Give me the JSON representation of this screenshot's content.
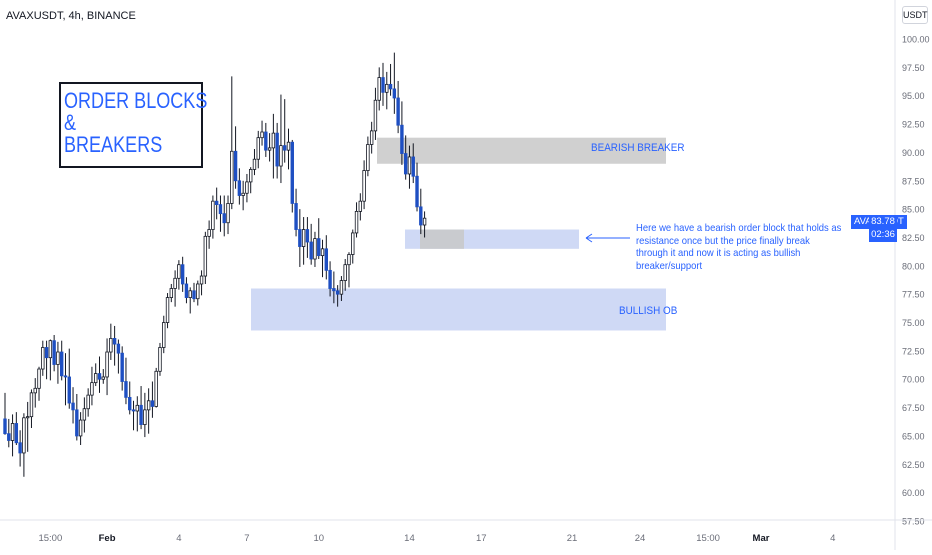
{
  "header": {
    "symbol_title": "AVAXUSDT, 4h, BINANCE",
    "currency": "USDT"
  },
  "annotations": {
    "title_lines": [
      "ORDER BLOCKS",
      "&",
      "BREAKERS"
    ],
    "bearish_breaker_label": "BEARISH BREAKER",
    "bullish_ob_label": "BULLISH OB",
    "note_text": "Here we have a bearish order block that holds as resistance once but the price finally break through it and now it is acting as bullish breaker/support"
  },
  "last_price": {
    "symbol": "AVAXUSDT",
    "value": "83.78",
    "countdown": "02:36"
  },
  "colors": {
    "bull_body": "#ffffff",
    "bear_body": "#1e4fc2",
    "wick": "#131722",
    "accent": "#2962ff",
    "breaker_zone": "#c8c8c8",
    "ob_zone": "#cfd9f5",
    "axis_text": "#6a6d78"
  },
  "chart_data": {
    "type": "candlestick",
    "symbol": "AVAXUSDT",
    "timeframe": "4h",
    "exchange": "BINANCE",
    "ylim": [
      57.5,
      101.5
    ],
    "y_ticks": [
      57.5,
      60.0,
      62.5,
      65.0,
      67.5,
      70.0,
      72.5,
      75.0,
      77.5,
      80.0,
      82.5,
      85.0,
      87.5,
      90.0,
      92.5,
      95.0,
      97.5,
      100.0
    ],
    "x_ticks": [
      {
        "label": "15:00",
        "index": 12
      },
      {
        "label": "Feb",
        "index": 27
      },
      {
        "label": "4",
        "index": 46
      },
      {
        "label": "7",
        "index": 64
      },
      {
        "label": "10",
        "index": 83
      },
      {
        "label": "14",
        "index": 107
      },
      {
        "label": "17",
        "index": 126
      },
      {
        "label": "21",
        "index": 150
      },
      {
        "label": "24",
        "index": 168
      },
      {
        "label": "15:00",
        "index": 186
      },
      {
        "label": "Mar",
        "index": 200
      },
      {
        "label": "4",
        "index": 219
      }
    ],
    "candles": [
      [
        66.5,
        68.8,
        65.1,
        65.2
      ],
      [
        65.2,
        66.5,
        64.0,
        64.6
      ],
      [
        64.6,
        66.9,
        63.2,
        66.1
      ],
      [
        66.1,
        67.1,
        64.2,
        64.4
      ],
      [
        64.4,
        65.5,
        62.3,
        63.5
      ],
      [
        63.5,
        67.0,
        61.4,
        66.6
      ],
      [
        66.6,
        68.0,
        63.6,
        66.7
      ],
      [
        66.7,
        69.1,
        65.7,
        68.8
      ],
      [
        68.8,
        70.1,
        67.5,
        69.2
      ],
      [
        69.2,
        71.1,
        68.1,
        70.9
      ],
      [
        70.9,
        73.4,
        70.3,
        72.8
      ],
      [
        72.8,
        73.4,
        70.0,
        71.9
      ],
      [
        71.9,
        73.5,
        69.9,
        73.4
      ],
      [
        73.4,
        73.9,
        70.7,
        71.3
      ],
      [
        71.3,
        73.3,
        69.6,
        72.4
      ],
      [
        72.4,
        73.4,
        69.9,
        70.3
      ],
      [
        70.3,
        72.3,
        67.7,
        70.2
      ],
      [
        70.2,
        72.7,
        67.4,
        67.9
      ],
      [
        67.9,
        69.3,
        66.1,
        67.3
      ],
      [
        67.3,
        68.7,
        64.6,
        65.0
      ],
      [
        65.0,
        67.1,
        64.2,
        66.4
      ],
      [
        66.4,
        68.4,
        65.3,
        67.4
      ],
      [
        67.4,
        69.2,
        66.7,
        68.6
      ],
      [
        68.6,
        71.1,
        67.7,
        69.7
      ],
      [
        69.7,
        71.4,
        69.4,
        70.5
      ],
      [
        70.5,
        72.0,
        68.8,
        70.0
      ],
      [
        70.0,
        70.9,
        69.6,
        70.2
      ],
      [
        70.2,
        73.6,
        68.6,
        72.4
      ],
      [
        72.4,
        74.9,
        71.7,
        73.6
      ],
      [
        73.6,
        74.7,
        71.2,
        73.1
      ],
      [
        73.1,
        73.5,
        70.5,
        72.3
      ],
      [
        72.3,
        72.9,
        69.0,
        69.8
      ],
      [
        69.8,
        71.9,
        67.8,
        68.4
      ],
      [
        68.4,
        69.8,
        66.9,
        67.3
      ],
      [
        67.3,
        68.1,
        65.5,
        67.2
      ],
      [
        67.2,
        68.5,
        65.4,
        67.7
      ],
      [
        67.7,
        69.4,
        65.6,
        66.0
      ],
      [
        66.0,
        68.8,
        64.9,
        67.3
      ],
      [
        67.3,
        69.2,
        65.2,
        68.1
      ],
      [
        68.1,
        69.8,
        66.6,
        67.6
      ],
      [
        67.6,
        71.0,
        67.5,
        70.7
      ],
      [
        70.7,
        73.2,
        70.3,
        72.8
      ],
      [
        72.8,
        75.6,
        72.3,
        75.0
      ],
      [
        75.0,
        77.6,
        74.5,
        77.2
      ],
      [
        77.2,
        78.4,
        76.8,
        78.0
      ],
      [
        78.0,
        79.6,
        76.4,
        78.9
      ],
      [
        78.9,
        80.5,
        77.9,
        80.1
      ],
      [
        80.1,
        80.8,
        77.7,
        78.4
      ],
      [
        78.4,
        79.0,
        76.7,
        77.2
      ],
      [
        77.2,
        78.1,
        75.8,
        77.8
      ],
      [
        77.8,
        78.5,
        76.8,
        77.1
      ],
      [
        77.1,
        78.7,
        76.5,
        78.4
      ],
      [
        78.4,
        79.6,
        77.4,
        79.1
      ],
      [
        79.1,
        83.0,
        78.4,
        82.6
      ],
      [
        82.6,
        84.0,
        81.5,
        83.2
      ],
      [
        83.2,
        86.2,
        82.4,
        85.7
      ],
      [
        85.7,
        86.9,
        84.1,
        85.4
      ],
      [
        85.4,
        86.2,
        83.0,
        84.6
      ],
      [
        84.6,
        86.2,
        82.6,
        83.8
      ],
      [
        83.8,
        86.2,
        82.8,
        85.5
      ],
      [
        85.5,
        96.7,
        85.0,
        90.1
      ],
      [
        90.1,
        92.3,
        86.8,
        87.5
      ],
      [
        87.5,
        88.6,
        85.4,
        86.2
      ],
      [
        86.2,
        87.5,
        84.9,
        86.4
      ],
      [
        86.4,
        88.1,
        85.6,
        87.4
      ],
      [
        87.4,
        88.7,
        86.4,
        88.5
      ],
      [
        88.5,
        90.3,
        88.0,
        89.4
      ],
      [
        89.4,
        91.9,
        88.6,
        91.3
      ],
      [
        91.3,
        92.8,
        90.6,
        91.8
      ],
      [
        91.8,
        92.6,
        89.6,
        90.2
      ],
      [
        90.2,
        91.7,
        89.2,
        90.4
      ],
      [
        90.4,
        93.4,
        87.7,
        91.7
      ],
      [
        91.7,
        92.6,
        87.7,
        88.8
      ],
      [
        88.8,
        95.1,
        87.3,
        90.6
      ],
      [
        90.6,
        94.7,
        89.1,
        90.2
      ],
      [
        90.2,
        92.1,
        88.5,
        90.9
      ],
      [
        90.9,
        91.1,
        84.7,
        85.5
      ],
      [
        85.5,
        86.8,
        82.6,
        83.2
      ],
      [
        83.2,
        85.0,
        79.9,
        81.7
      ],
      [
        81.7,
        84.3,
        80.1,
        83.2
      ],
      [
        83.2,
        84.3,
        80.7,
        82.1
      ],
      [
        82.1,
        83.7,
        80.1,
        80.6
      ],
      [
        80.6,
        83.0,
        79.9,
        82.4
      ],
      [
        82.4,
        84.2,
        80.6,
        80.9
      ],
      [
        80.9,
        82.3,
        79.0,
        81.5
      ],
      [
        81.5,
        82.7,
        78.8,
        79.6
      ],
      [
        79.6,
        80.4,
        77.3,
        78.0
      ],
      [
        78.0,
        79.5,
        76.7,
        77.8
      ],
      [
        77.8,
        78.3,
        76.4,
        77.5
      ],
      [
        77.5,
        79.1,
        76.9,
        78.7
      ],
      [
        78.7,
        80.6,
        77.8,
        80.1
      ],
      [
        80.1,
        81.2,
        78.1,
        81.0
      ],
      [
        81.0,
        83.2,
        80.2,
        82.9
      ],
      [
        82.9,
        85.6,
        82.5,
        84.8
      ],
      [
        84.8,
        86.4,
        84.0,
        85.7
      ],
      [
        85.7,
        89.3,
        85.0,
        88.4
      ],
      [
        88.4,
        91.4,
        87.9,
        90.7
      ],
      [
        90.7,
        92.7,
        89.9,
        91.9
      ],
      [
        91.9,
        95.7,
        91.1,
        94.6
      ],
      [
        94.6,
        97.5,
        93.7,
        96.6
      ],
      [
        96.6,
        97.9,
        94.1,
        95.3
      ],
      [
        95.3,
        97.1,
        93.8,
        96.0
      ],
      [
        96.0,
        97.8,
        95.0,
        95.6
      ],
      [
        95.6,
        98.8,
        93.4,
        94.8
      ],
      [
        94.8,
        96.3,
        91.7,
        92.4
      ],
      [
        92.4,
        94.5,
        88.9,
        89.9
      ],
      [
        89.9,
        91.5,
        87.6,
        88.1
      ],
      [
        88.1,
        90.6,
        86.8,
        89.6
      ],
      [
        89.6,
        90.8,
        87.3,
        87.9
      ],
      [
        87.9,
        89.1,
        84.8,
        85.2
      ],
      [
        85.2,
        86.8,
        82.8,
        83.6
      ],
      [
        83.6,
        84.8,
        82.5,
        84.2
      ]
    ],
    "zones": [
      {
        "name": "BEARISH BREAKER",
        "y_low": 89.0,
        "y_high": 91.3
      },
      {
        "name": "breaker retest",
        "y_low": 81.5,
        "y_high": 83.2
      },
      {
        "name": "BULLISH OB",
        "y_low": 74.3,
        "y_high": 78.0
      }
    ],
    "last_price": 83.78
  }
}
